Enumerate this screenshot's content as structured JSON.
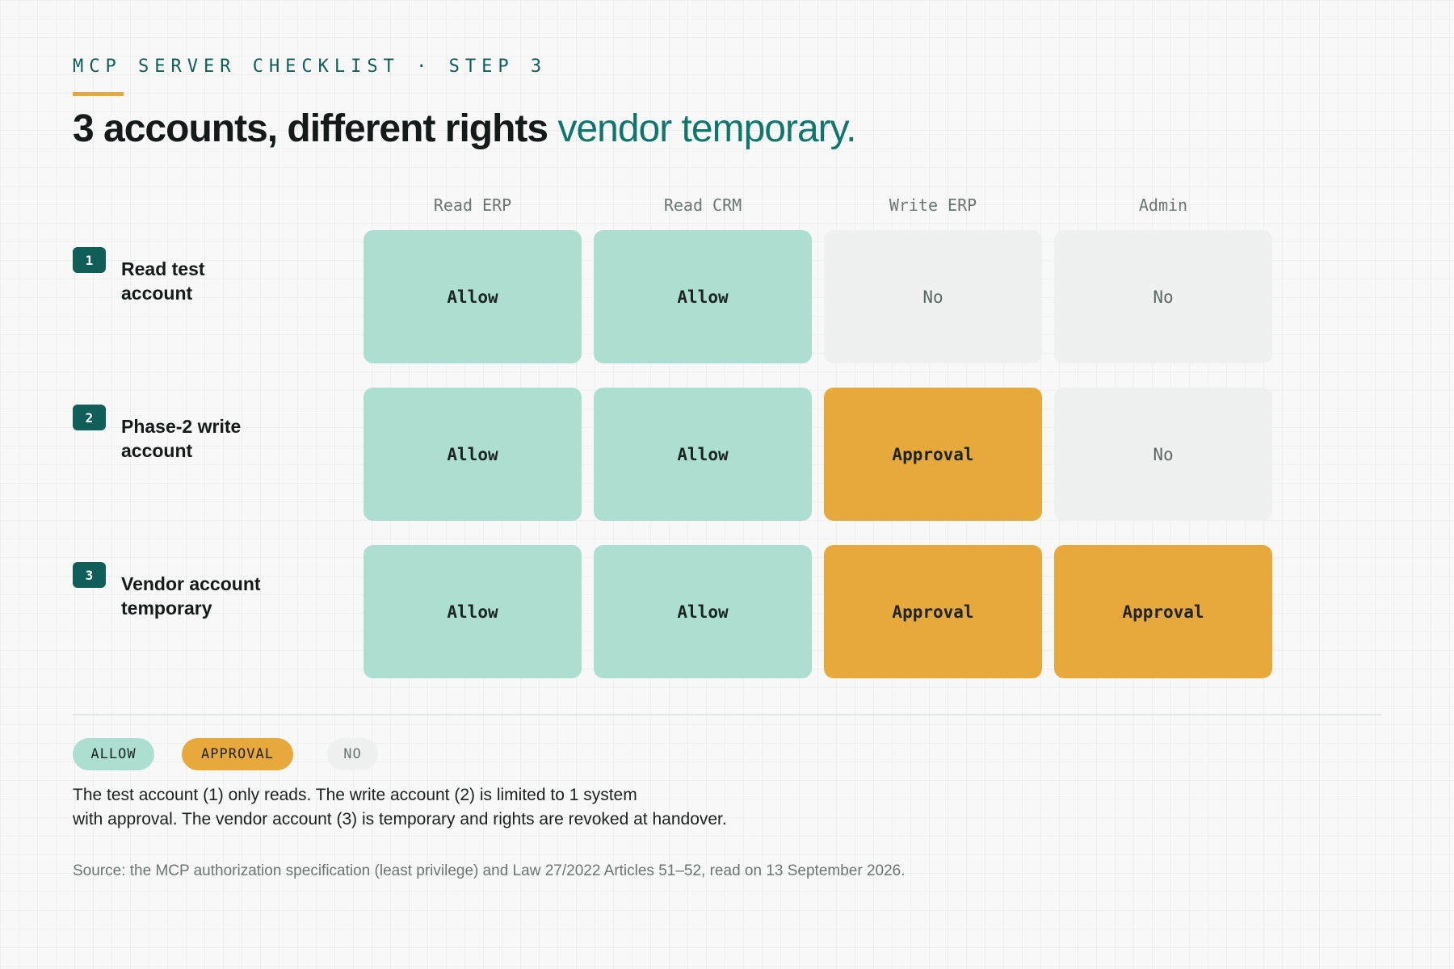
{
  "header": {
    "kicker": "MCP SERVER CHECKLIST · STEP 3",
    "title_strong": "3 accounts, different rights",
    "title_accent": "vendor temporary."
  },
  "columns": [
    "Read ERP",
    "Read CRM",
    "Write ERP",
    "Admin"
  ],
  "rows": [
    {
      "num": "1",
      "label_line1": "Read test",
      "label_line2": "account",
      "cells": [
        {
          "value": "Allow",
          "status": "allow"
        },
        {
          "value": "Allow",
          "status": "allow"
        },
        {
          "value": "No",
          "status": "no"
        },
        {
          "value": "No",
          "status": "no"
        }
      ]
    },
    {
      "num": "2",
      "label_line1": "Phase-2 write",
      "label_line2": "account",
      "cells": [
        {
          "value": "Allow",
          "status": "allow"
        },
        {
          "value": "Allow",
          "status": "allow"
        },
        {
          "value": "Approval",
          "status": "approval"
        },
        {
          "value": "No",
          "status": "no"
        }
      ]
    },
    {
      "num": "3",
      "label_line1": "Vendor account",
      "label_line2": "temporary",
      "cells": [
        {
          "value": "Allow",
          "status": "allow"
        },
        {
          "value": "Allow",
          "status": "allow"
        },
        {
          "value": "Approval",
          "status": "approval"
        },
        {
          "value": "Approval",
          "status": "approval"
        }
      ]
    }
  ],
  "legend": {
    "allow": "ALLOW",
    "approval": "APPROVAL",
    "no": "NO"
  },
  "colors": {
    "allow": "#acdfd2",
    "approval": "#e7a93c",
    "no": "#eef1f0",
    "accent": "#0f766e",
    "badge": "#0f5f58"
  },
  "note": {
    "line1": "The test account (1) only reads. The write account (2) is limited to 1 system",
    "line2": "with approval. The vendor account (3) is temporary and rights are revoked at handover."
  },
  "source": "Source: the MCP authorization specification (least privilege) and Law 27/2022 Articles 51–52, read on 13 September 2026."
}
